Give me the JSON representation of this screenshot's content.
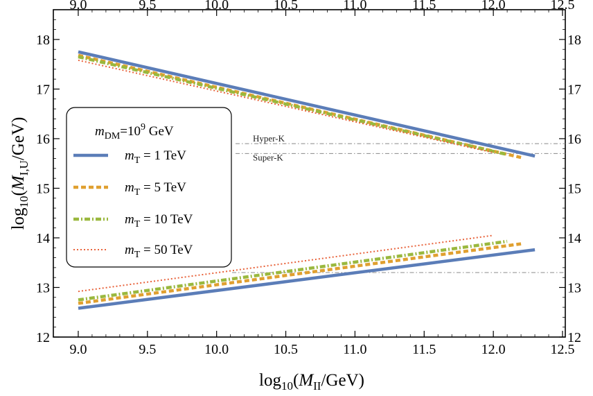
{
  "chart_data": {
    "type": "line",
    "xlabel": {
      "prefix": "log",
      "sub": "10",
      "open": "(",
      "var": "M",
      "varsub": "II",
      "rest": "/GeV)"
    },
    "ylabel": {
      "prefix": "log",
      "sub": "10",
      "open": "(",
      "var": "M",
      "varsub": "I,U",
      "rest": "/GeV)"
    },
    "xlim": [
      8.82,
      12.52
    ],
    "ylim": [
      12.0,
      18.6
    ],
    "x_ticks": [
      "9.0",
      "9.5",
      "10.0",
      "10.5",
      "11.0",
      "11.5",
      "12.0",
      "12.5"
    ],
    "y_ticks": [
      "12",
      "13",
      "14",
      "15",
      "16",
      "17",
      "18"
    ],
    "grid": false,
    "legend": {
      "position": "left",
      "title": {
        "var": "m",
        "varsub": "DM",
        "eq": "=10",
        "sup": "9",
        "unit": " GeV"
      },
      "entries": [
        {
          "var": "m",
          "varsub": "T",
          "text": " = 1 TeV"
        },
        {
          "var": "m",
          "varsub": "T",
          "text": " = 5 TeV"
        },
        {
          "var": "m",
          "varsub": "T",
          "text": " = 10 TeV"
        },
        {
          "var": "m",
          "varsub": "T",
          "text": " = 50 TeV"
        }
      ]
    },
    "reference_lines": [
      {
        "label": "Hyper-K",
        "y": 15.9
      },
      {
        "label": "Super-K",
        "y": 15.7
      },
      {
        "label": "",
        "y": 13.3
      }
    ],
    "series": [
      {
        "color": "#5b7db8",
        "style": "solid",
        "upper": {
          "x": [
            9.0,
            12.3
          ],
          "y": [
            17.75,
            15.65
          ]
        },
        "lower": {
          "x": [
            9.0,
            12.3
          ],
          "y": [
            12.58,
            13.76
          ]
        }
      },
      {
        "color": "#e0a030",
        "style": "dashed",
        "upper": {
          "x": [
            9.0,
            12.2
          ],
          "y": [
            17.68,
            15.62
          ]
        },
        "lower": {
          "x": [
            9.0,
            12.2
          ],
          "y": [
            12.68,
            13.88
          ]
        }
      },
      {
        "color": "#9ab83e",
        "style": "dashdot",
        "upper": {
          "x": [
            9.0,
            12.1
          ],
          "y": [
            17.65,
            15.68
          ]
        },
        "lower": {
          "x": [
            9.0,
            12.1
          ],
          "y": [
            12.75,
            13.93
          ]
        }
      },
      {
        "color": "#e8623a",
        "style": "dotted",
        "upper": {
          "x": [
            9.0,
            12.0
          ],
          "y": [
            17.58,
            15.72
          ]
        },
        "lower": {
          "x": [
            9.0,
            12.0
          ],
          "y": [
            12.92,
            14.05
          ]
        }
      }
    ]
  }
}
